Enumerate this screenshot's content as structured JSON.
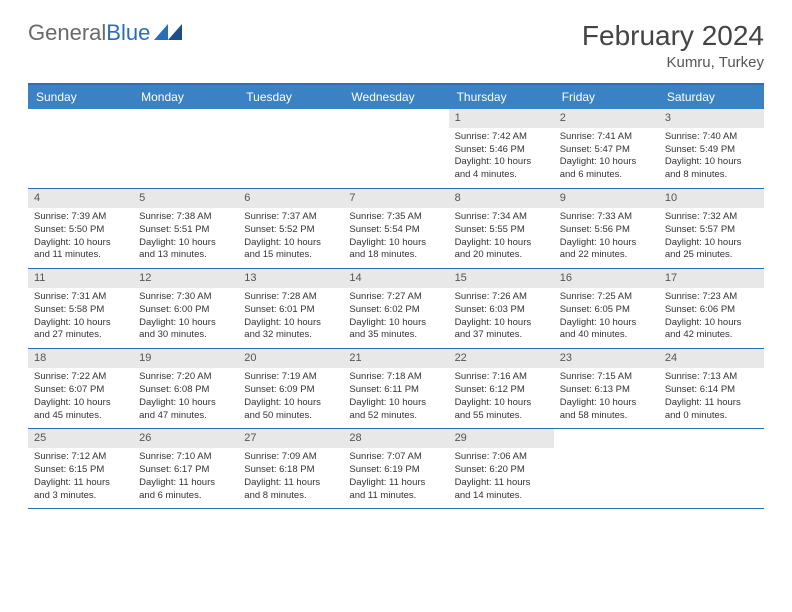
{
  "brand": {
    "general": "General",
    "blue": "Blue"
  },
  "title": "February 2024",
  "location": "Kumru, Turkey",
  "colors": {
    "header_bg": "#3b82c4",
    "header_text": "#ffffff",
    "border": "#2a6db8",
    "daynum_bg": "#e8e8e8",
    "page_bg": "#ffffff",
    "text": "#333333",
    "logo_gray": "#6a6a6a",
    "logo_blue": "#2a6db8"
  },
  "day_labels": [
    "Sunday",
    "Monday",
    "Tuesday",
    "Wednesday",
    "Thursday",
    "Friday",
    "Saturday"
  ],
  "weeks": [
    [
      {
        "n": "",
        "sr": "",
        "ss": "",
        "dl": ""
      },
      {
        "n": "",
        "sr": "",
        "ss": "",
        "dl": ""
      },
      {
        "n": "",
        "sr": "",
        "ss": "",
        "dl": ""
      },
      {
        "n": "",
        "sr": "",
        "ss": "",
        "dl": ""
      },
      {
        "n": "1",
        "sr": "Sunrise: 7:42 AM",
        "ss": "Sunset: 5:46 PM",
        "dl": "Daylight: 10 hours and 4 minutes."
      },
      {
        "n": "2",
        "sr": "Sunrise: 7:41 AM",
        "ss": "Sunset: 5:47 PM",
        "dl": "Daylight: 10 hours and 6 minutes."
      },
      {
        "n": "3",
        "sr": "Sunrise: 7:40 AM",
        "ss": "Sunset: 5:49 PM",
        "dl": "Daylight: 10 hours and 8 minutes."
      }
    ],
    [
      {
        "n": "4",
        "sr": "Sunrise: 7:39 AM",
        "ss": "Sunset: 5:50 PM",
        "dl": "Daylight: 10 hours and 11 minutes."
      },
      {
        "n": "5",
        "sr": "Sunrise: 7:38 AM",
        "ss": "Sunset: 5:51 PM",
        "dl": "Daylight: 10 hours and 13 minutes."
      },
      {
        "n": "6",
        "sr": "Sunrise: 7:37 AM",
        "ss": "Sunset: 5:52 PM",
        "dl": "Daylight: 10 hours and 15 minutes."
      },
      {
        "n": "7",
        "sr": "Sunrise: 7:35 AM",
        "ss": "Sunset: 5:54 PM",
        "dl": "Daylight: 10 hours and 18 minutes."
      },
      {
        "n": "8",
        "sr": "Sunrise: 7:34 AM",
        "ss": "Sunset: 5:55 PM",
        "dl": "Daylight: 10 hours and 20 minutes."
      },
      {
        "n": "9",
        "sr": "Sunrise: 7:33 AM",
        "ss": "Sunset: 5:56 PM",
        "dl": "Daylight: 10 hours and 22 minutes."
      },
      {
        "n": "10",
        "sr": "Sunrise: 7:32 AM",
        "ss": "Sunset: 5:57 PM",
        "dl": "Daylight: 10 hours and 25 minutes."
      }
    ],
    [
      {
        "n": "11",
        "sr": "Sunrise: 7:31 AM",
        "ss": "Sunset: 5:58 PM",
        "dl": "Daylight: 10 hours and 27 minutes."
      },
      {
        "n": "12",
        "sr": "Sunrise: 7:30 AM",
        "ss": "Sunset: 6:00 PM",
        "dl": "Daylight: 10 hours and 30 minutes."
      },
      {
        "n": "13",
        "sr": "Sunrise: 7:28 AM",
        "ss": "Sunset: 6:01 PM",
        "dl": "Daylight: 10 hours and 32 minutes."
      },
      {
        "n": "14",
        "sr": "Sunrise: 7:27 AM",
        "ss": "Sunset: 6:02 PM",
        "dl": "Daylight: 10 hours and 35 minutes."
      },
      {
        "n": "15",
        "sr": "Sunrise: 7:26 AM",
        "ss": "Sunset: 6:03 PM",
        "dl": "Daylight: 10 hours and 37 minutes."
      },
      {
        "n": "16",
        "sr": "Sunrise: 7:25 AM",
        "ss": "Sunset: 6:05 PM",
        "dl": "Daylight: 10 hours and 40 minutes."
      },
      {
        "n": "17",
        "sr": "Sunrise: 7:23 AM",
        "ss": "Sunset: 6:06 PM",
        "dl": "Daylight: 10 hours and 42 minutes."
      }
    ],
    [
      {
        "n": "18",
        "sr": "Sunrise: 7:22 AM",
        "ss": "Sunset: 6:07 PM",
        "dl": "Daylight: 10 hours and 45 minutes."
      },
      {
        "n": "19",
        "sr": "Sunrise: 7:20 AM",
        "ss": "Sunset: 6:08 PM",
        "dl": "Daylight: 10 hours and 47 minutes."
      },
      {
        "n": "20",
        "sr": "Sunrise: 7:19 AM",
        "ss": "Sunset: 6:09 PM",
        "dl": "Daylight: 10 hours and 50 minutes."
      },
      {
        "n": "21",
        "sr": "Sunrise: 7:18 AM",
        "ss": "Sunset: 6:11 PM",
        "dl": "Daylight: 10 hours and 52 minutes."
      },
      {
        "n": "22",
        "sr": "Sunrise: 7:16 AM",
        "ss": "Sunset: 6:12 PM",
        "dl": "Daylight: 10 hours and 55 minutes."
      },
      {
        "n": "23",
        "sr": "Sunrise: 7:15 AM",
        "ss": "Sunset: 6:13 PM",
        "dl": "Daylight: 10 hours and 58 minutes."
      },
      {
        "n": "24",
        "sr": "Sunrise: 7:13 AM",
        "ss": "Sunset: 6:14 PM",
        "dl": "Daylight: 11 hours and 0 minutes."
      }
    ],
    [
      {
        "n": "25",
        "sr": "Sunrise: 7:12 AM",
        "ss": "Sunset: 6:15 PM",
        "dl": "Daylight: 11 hours and 3 minutes."
      },
      {
        "n": "26",
        "sr": "Sunrise: 7:10 AM",
        "ss": "Sunset: 6:17 PM",
        "dl": "Daylight: 11 hours and 6 minutes."
      },
      {
        "n": "27",
        "sr": "Sunrise: 7:09 AM",
        "ss": "Sunset: 6:18 PM",
        "dl": "Daylight: 11 hours and 8 minutes."
      },
      {
        "n": "28",
        "sr": "Sunrise: 7:07 AM",
        "ss": "Sunset: 6:19 PM",
        "dl": "Daylight: 11 hours and 11 minutes."
      },
      {
        "n": "29",
        "sr": "Sunrise: 7:06 AM",
        "ss": "Sunset: 6:20 PM",
        "dl": "Daylight: 11 hours and 14 minutes."
      },
      {
        "n": "",
        "sr": "",
        "ss": "",
        "dl": ""
      },
      {
        "n": "",
        "sr": "",
        "ss": "",
        "dl": ""
      }
    ]
  ]
}
